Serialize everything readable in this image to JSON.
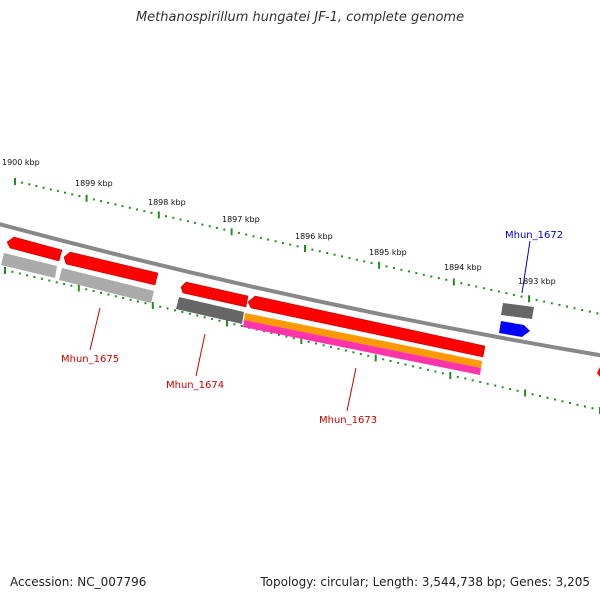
{
  "title": "Methanospirillum hungatei JF-1, complete genome",
  "footer": {
    "accession": "Accession: NC_007796",
    "info": "Topology: circular; Length: 3,544,738 bp; Genes: 3,205"
  },
  "ruler_labels": [
    "1900 kbp",
    "1899 kbp",
    "1898 kbp",
    "1897 kbp",
    "1896 kbp",
    "1895 kbp",
    "1894 kbp",
    "1893 kbp"
  ],
  "gene_labels": [
    {
      "text": "Mhun_1672",
      "color": "#0000cc"
    },
    {
      "text": "Mhun_1675",
      "color": "#cc0000"
    },
    {
      "text": "Mhun_1674",
      "color": "#cc0000"
    },
    {
      "text": "Mhun_1673",
      "color": "#cc0000"
    }
  ],
  "colors": {
    "cds": "#ff0000",
    "gene_forward": "#0000ff",
    "gene": "#9a9a9a",
    "gene_dark": "#666666",
    "misc": "#ff9900",
    "pink": "#ff33aa",
    "ruler": "#228b22",
    "backbone": "#888888"
  }
}
